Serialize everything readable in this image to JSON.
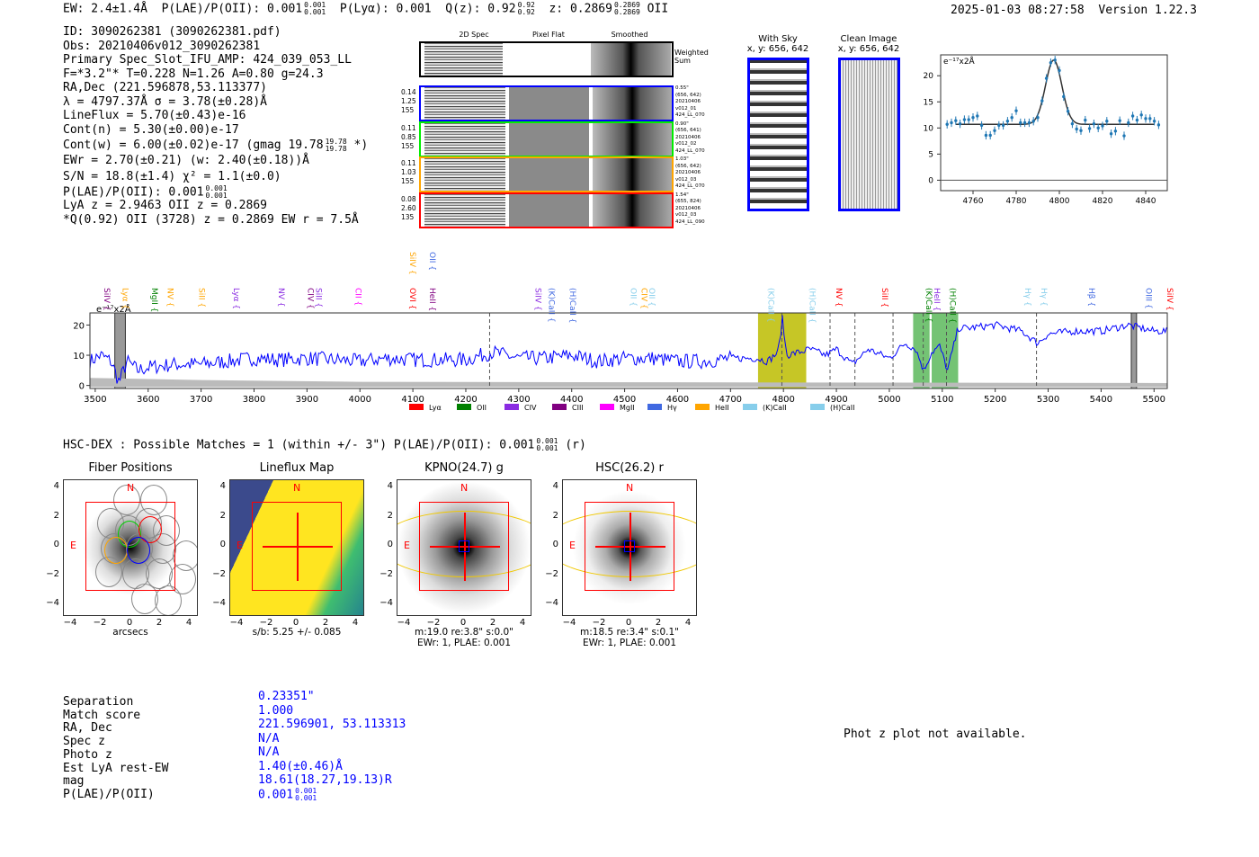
{
  "header": {
    "ew": "EW: 2.4±1.4Å",
    "plae_label": "P(LAE)/P(OII): 0.001",
    "plae_hi": "0.001",
    "plae_lo": "0.001",
    "plya": "P(Lyα): 0.001",
    "qz": "Q(z): 0.92",
    "qz_hi": "0.92",
    "qz_lo": "0.92",
    "z": "z: 0.2869",
    "z_hi": "0.2869",
    "z_lo": "0.2869",
    "z_line": "OII",
    "datetime": "2025-01-03 08:27:58",
    "version": "Version 1.22.3"
  },
  "info": {
    "lines": [
      "ID: 3090262381 (3090262381.pdf)",
      "Obs: 20210406v012_3090262381",
      "Primary Spec_Slot_IFU_AMP: 424_039_053_LL",
      "F=*3.2\"*  T=0.228  N=1.26  A=0.80  g=24.3",
      "RA,Dec (221.596878,53.113377)",
      "λ = 4797.37Å  σ = 3.78(±0.28)Å",
      "LineFlux = 5.70(±0.43)e-16",
      "Cont(n) = 5.30(±0.00)e-17"
    ],
    "contw": "Cont(w) = 6.00(±0.02)e-17 (gmag 19.78",
    "contw_hi": "19.78",
    "contw_lo": "19.78",
    "contw_end": "*)",
    "ewr": "EWr = 2.70(±0.21) (w: 2.40(±0.18))Å",
    "sn": "S/N = 18.8(±1.4)  χ² = 1.1(±0.0)",
    "plae": "P(LAE)/P(OII): 0.001",
    "plae_hi": "0.001",
    "plae_lo": "0.001",
    "z": "LyA z = 2.9463  OII z = 0.2869",
    "q": "*Q(0.92) OII (3728) z = 0.2869  EW r = 7.5Å"
  },
  "spec2d": {
    "headers": [
      "2D Spec",
      "Pixel Flat",
      "Smoothed"
    ],
    "weighted": "Weighted Sum",
    "rows": [
      {
        "left": [
          "0.14",
          "1.25",
          "155"
        ],
        "right": [
          "0.55\"",
          "(656, 642)",
          "20210406",
          "v012_01",
          "424_LL_070"
        ],
        "color": "#0000ff"
      },
      {
        "left": [
          "0.11",
          "0.85",
          "155"
        ],
        "right": [
          "0.90\"",
          "(656, 641)",
          "20210406",
          "v012_02",
          "424_LL_070"
        ],
        "color": "#00ee00"
      },
      {
        "left": [
          "0.11",
          "1.03",
          "155"
        ],
        "right": [
          "1.03\"",
          "(656, 642)",
          "20210406",
          "v012_03",
          "424_LL_070"
        ],
        "color": "#ffa500"
      },
      {
        "left": [
          "0.08",
          "2.60",
          "135"
        ],
        "right": [
          "1.54\"",
          "(655, 824)",
          "20210406",
          "v012_03",
          "424_LL_090"
        ],
        "color": "#ff0000"
      }
    ]
  },
  "cutouts": [
    {
      "title": "With Sky",
      "coords": "x, y: 656, 642"
    },
    {
      "title": "Clean Image",
      "coords": "x, y: 656, 642"
    }
  ],
  "chart_data": [
    {
      "type": "scatter",
      "title": "",
      "ylabel": "e⁻¹⁷x2Å",
      "xlim": [
        4745,
        4850
      ],
      "ylim": [
        -2,
        24
      ],
      "xticks": [
        4760,
        4780,
        4800,
        4820,
        4840
      ],
      "yticks": [
        0,
        5,
        10,
        15,
        20
      ],
      "x": [
        4748,
        4750,
        4752,
        4754,
        4756,
        4758,
        4760,
        4762,
        4764,
        4766,
        4768,
        4770,
        4772,
        4774,
        4776,
        4778,
        4780,
        4782,
        4784,
        4786,
        4788,
        4790,
        4792,
        4794,
        4796,
        4798,
        4800,
        4802,
        4804,
        4806,
        4808,
        4810,
        4812,
        4814,
        4816,
        4818,
        4820,
        4822,
        4824,
        4826,
        4828,
        4830,
        4832,
        4834,
        4836,
        4838,
        4840,
        4842,
        4844,
        4846
      ],
      "y": [
        10.7,
        11,
        11.4,
        10.8,
        11.6,
        11.6,
        12,
        12.3,
        10.5,
        8.6,
        8.6,
        9.5,
        10.5,
        10.5,
        11.3,
        12,
        13.3,
        11,
        11,
        11,
        11.3,
        12,
        15.2,
        19.5,
        22.5,
        23,
        21,
        16,
        13.2,
        10.8,
        9.8,
        9.5,
        11.5,
        9.9,
        10.8,
        10,
        10.4,
        11.3,
        8.9,
        9.4,
        11.4,
        8.5,
        11,
        12.3,
        11.5,
        12.5,
        11.8,
        11.8,
        11.3,
        10.6
      ],
      "fit": {
        "center": 4797.37,
        "sigma": 3.78,
        "continuum": 10.7,
        "peak": 23
      }
    },
    {
      "type": "line",
      "ylabel": "e⁻¹⁷x2Å",
      "xlim": [
        3490,
        5525
      ],
      "ylim": [
        -1,
        24
      ],
      "xticks": [
        3500,
        3600,
        3700,
        3800,
        3900,
        4000,
        4100,
        4200,
        4300,
        4400,
        4500,
        4600,
        4700,
        4800,
        4900,
        5000,
        5100,
        5200,
        5300,
        5400,
        5500
      ],
      "yticks": [
        0,
        10,
        20
      ],
      "x": [
        3490,
        3510,
        3530,
        3545,
        3560,
        3580,
        3600,
        3650,
        3700,
        3750,
        3800,
        3850,
        3900,
        3950,
        4000,
        4050,
        4100,
        4150,
        4200,
        4250,
        4300,
        4350,
        4400,
        4450,
        4500,
        4550,
        4600,
        4650,
        4700,
        4750,
        4770,
        4790,
        4798,
        4806,
        4830,
        4850,
        4880,
        4900,
        4930,
        4960,
        5000,
        5030,
        5050,
        5065,
        5080,
        5095,
        5110,
        5130,
        5150,
        5200,
        5250,
        5280,
        5300,
        5350,
        5400,
        5450,
        5500,
        5525
      ],
      "y": [
        8,
        10,
        8,
        1,
        8,
        5,
        6,
        7,
        7,
        8,
        9,
        8.5,
        9,
        8.5,
        8,
        9,
        8.5,
        8.5,
        8.5,
        11,
        9,
        9,
        10,
        8,
        9,
        9,
        8,
        8,
        9,
        9,
        8,
        11,
        22,
        10,
        11,
        12,
        10,
        12,
        7,
        12,
        9,
        14,
        12,
        5,
        11,
        13,
        5,
        19,
        19,
        20,
        18,
        14,
        17,
        18,
        18,
        20,
        18,
        18
      ],
      "shaded_regions": [
        {
          "from": 3537,
          "to": 3557,
          "kind": "masked"
        },
        {
          "from": 4752,
          "to": 4843,
          "kind": "line-fit",
          "color": "#bcbc00"
        },
        {
          "from": 5045,
          "to": 5076,
          "kind": "absorption",
          "color": "#5cb85c"
        },
        {
          "from": 5080,
          "to": 5130,
          "kind": "absorption",
          "color": "#5cb85c"
        },
        {
          "from": 5457,
          "to": 5467,
          "kind": "masked"
        }
      ],
      "dashed_lines": [
        4245,
        4797,
        4888,
        4935,
        5007,
        5064,
        5108,
        5278
      ],
      "line_labels": [
        {
          "name": "SiIV",
          "x": 3510,
          "color": "#800080"
        },
        {
          "name": "Lyα",
          "x": 3545,
          "color": "#ffa500"
        },
        {
          "name": "MgII",
          "x": 3600,
          "color": "#008000"
        },
        {
          "name": "NV",
          "x": 3630,
          "color": "#ffa500"
        },
        {
          "name": "SiII",
          "x": 3690,
          "color": "#ffa500"
        },
        {
          "name": "Lyα",
          "x": 3755,
          "color": "#8a2be2"
        },
        {
          "name": "NV",
          "x": 3840,
          "color": "#8a2be2"
        },
        {
          "name": "CIV",
          "x": 3895,
          "color": "#800080"
        },
        {
          "name": "SiII",
          "x": 3910,
          "color": "#8a2be2"
        },
        {
          "name": "CII",
          "x": 3985,
          "color": "#ff00ff"
        },
        {
          "name": "OVI",
          "x": 4088,
          "color": "#ff0000"
        },
        {
          "name": "HeII",
          "x": 4125,
          "color": "#800080"
        },
        {
          "name": "SiIV",
          "x": 4088,
          "color": "#ffa500",
          "row": 2
        },
        {
          "name": "OII",
          "x": 4125,
          "color": "#4169e1",
          "row": 2
        },
        {
          "name": "SiIV",
          "x": 4325,
          "color": "#8a2be2"
        },
        {
          "name": "(K)CaII",
          "x": 4350,
          "color": "#4169e1"
        },
        {
          "name": "(H)CaII",
          "x": 4390,
          "color": "#4169e1"
        },
        {
          "name": "OII",
          "x": 4505,
          "color": "#87ceeb"
        },
        {
          "name": "CIV",
          "x": 4525,
          "color": "#ffa500"
        },
        {
          "name": "OII",
          "x": 4540,
          "color": "#87ceeb"
        },
        {
          "name": "(K)CaII",
          "x": 4765,
          "color": "#87ceeb"
        },
        {
          "name": "(H)CaII",
          "x": 4843,
          "color": "#87ceeb"
        },
        {
          "name": "NV",
          "x": 4893,
          "color": "#ff0000"
        },
        {
          "name": "SiII",
          "x": 4980,
          "color": "#ff0000"
        },
        {
          "name": "(K)CaII",
          "x": 5063,
          "color": "#008000"
        },
        {
          "name": "HeII",
          "x": 5078,
          "color": "#8a2be2"
        },
        {
          "name": "(H)CaII",
          "x": 5108,
          "color": "#008000"
        },
        {
          "name": "Hγ",
          "x": 5250,
          "color": "#87ceeb"
        },
        {
          "name": "Hγ",
          "x": 5280,
          "color": "#87ceeb"
        },
        {
          "name": "Hβ",
          "x": 5370,
          "color": "#4169e1"
        },
        {
          "name": "OIII",
          "x": 5478,
          "color": "#4169e1"
        },
        {
          "name": "SiIV",
          "x": 5518,
          "color": "#ff0000"
        }
      ],
      "legend": [
        {
          "name": "Lyα",
          "color": "#ff0000"
        },
        {
          "name": "OII",
          "color": "#008000"
        },
        {
          "name": "CIV",
          "color": "#8a2be2"
        },
        {
          "name": "CIII",
          "color": "#800080"
        },
        {
          "name": "MgII",
          "color": "#ff00ff"
        },
        {
          "name": "Hγ",
          "color": "#4169e1"
        },
        {
          "name": "HeII",
          "color": "#ffa500"
        },
        {
          "name": "(K)CaII",
          "color": "#87ceeb"
        },
        {
          "name": "(H)CaII",
          "color": "#87ceeb"
        }
      ],
      "legend_placement": "bottom-right"
    }
  ],
  "hsc": {
    "title": "HSC-DEX : Possible Matches = 1 (within +/- 3\")  P(LAE)/P(OII): 0.001",
    "hi": "0.001",
    "lo": "0.001",
    "end": "(r)",
    "panels": [
      {
        "title": "Fiber Positions",
        "cap1": "arcsecs",
        "cap2": ""
      },
      {
        "title": "Lineflux Map",
        "cap1": "s/b: 5.25 +/- 0.085",
        "cap2": ""
      },
      {
        "title": "KPNO(24.7) g",
        "cap1": "m:19.0  re:3.8\"  s:0.0\"",
        "cap2": "EWr: 1, PLAE: 0.001"
      },
      {
        "title": "HSC(26.2) r",
        "cap1": "m:18.5  re:3.4\"  s:0.1\"",
        "cap2": "EWr: 1, PLAE: 0.001"
      }
    ],
    "ticks": [
      "−4",
      "−2",
      "0",
      "2",
      "4"
    ],
    "yticks": [
      "4",
      "2",
      "0",
      "−2",
      "−4"
    ],
    "north": "N",
    "east": "E"
  },
  "match": {
    "labels": [
      "Separation",
      "Match score",
      "RA, Dec",
      "Spec z",
      "Photo z",
      "Est LyA rest-EW",
      "mag",
      "P(LAE)/P(OII)"
    ],
    "values": [
      "0.23351\"",
      "1.000",
      "221.596901, 53.113313",
      "N/A",
      "N/A",
      "1.40(±0.46)Å",
      "18.61(18.27,19.13)R",
      "0.001"
    ],
    "plae_hi": "0.001",
    "plae_lo": "0.001"
  },
  "photz": "Phot z plot not available."
}
